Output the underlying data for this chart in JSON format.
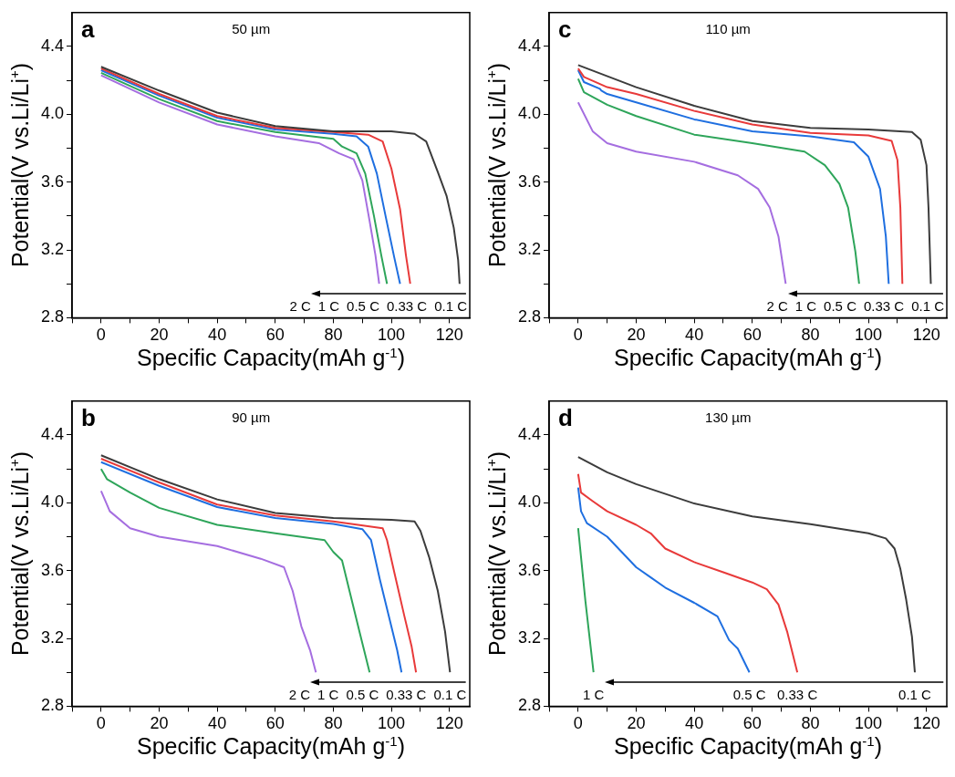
{
  "chart_data": [
    {
      "type": "line",
      "title": "50 µm",
      "xlabel": "Specific Capacity(mAh g$^{-1}$)",
      "ylabel": "Potential(V vs.Li/Li$^{+}$)",
      "xlim": [
        -10,
        127
      ],
      "ylim": [
        2.8,
        4.6
      ],
      "xticks": [
        {
          "value": -10,
          "label": null
        },
        0,
        {
          "value": 10,
          "label": null
        },
        20,
        {
          "value": 30,
          "label": null
        },
        40,
        {
          "value": 50,
          "label": null
        },
        60,
        {
          "value": 70,
          "label": null
        },
        80,
        {
          "value": 90,
          "label": null
        },
        100,
        {
          "value": 110,
          "label": null
        },
        120
      ],
      "yticks": [
        2.8,
        {
          "value": 3.0,
          "label": null
        },
        3.2,
        {
          "value": 3.4,
          "label": null
        },
        3.6,
        {
          "value": 3.8,
          "label": null
        },
        "4.0",
        {
          "value": 4.2,
          "label": null
        },
        4.4
      ],
      "marker": "none",
      "annotations": [
        "a",
        "2 C",
        "1 C",
        "0.5 C",
        "0.33 C",
        "0.1 C"
      ],
      "series": [
        {
          "color": "#3c3c3c",
          "x": [
            0,
            20,
            40,
            60,
            80,
            100,
            108,
            112,
            116,
            119,
            121.5,
            123,
            123.5
          ],
          "values": [
            4.28,
            4.14,
            4.01,
            3.93,
            3.9,
            3.9,
            3.885,
            3.84,
            3.66,
            3.52,
            3.33,
            3.14,
            3.0
          ]
        },
        {
          "color": "#e83a3a",
          "x": [
            0,
            20,
            40,
            60,
            80,
            92,
            97,
            100,
            103,
            105,
            106.5
          ],
          "values": [
            4.27,
            4.12,
            3.99,
            3.92,
            3.895,
            3.88,
            3.84,
            3.68,
            3.44,
            3.17,
            3.0
          ]
        },
        {
          "color": "#1f6fe0",
          "x": [
            0,
            20,
            40,
            60,
            80,
            88,
            92,
            95,
            98,
            101,
            103
          ],
          "values": [
            4.26,
            4.11,
            3.98,
            3.91,
            3.885,
            3.87,
            3.81,
            3.65,
            3.4,
            3.155,
            3.0
          ]
        },
        {
          "color": "#2ea55a",
          "x": [
            0,
            20,
            40,
            60,
            80,
            83,
            88,
            91,
            94,
            96.5,
            98.5
          ],
          "values": [
            4.245,
            4.09,
            3.96,
            3.895,
            3.855,
            3.81,
            3.77,
            3.65,
            3.4,
            3.17,
            3.0
          ]
        },
        {
          "color": "#a56ee0",
          "x": [
            0,
            20,
            40,
            60,
            75,
            82,
            87,
            90,
            92.5,
            94.5,
            95.8
          ],
          "values": [
            4.23,
            4.07,
            3.94,
            3.87,
            3.83,
            3.77,
            3.735,
            3.61,
            3.37,
            3.17,
            3.0
          ]
        }
      ]
    },
    {
      "type": "line",
      "title": "110 µm",
      "xlabel": "Specific Capacity(mAh g$^{-1}$)",
      "ylabel": "Potential(V vs.Li/Li$^{+}$)",
      "xlim": [
        -10,
        127
      ],
      "ylim": [
        2.8,
        4.6
      ],
      "xticks": [
        {
          "value": -10,
          "label": null
        },
        0,
        {
          "value": 10,
          "label": null
        },
        20,
        {
          "value": 30,
          "label": null
        },
        40,
        {
          "value": 50,
          "label": null
        },
        60,
        {
          "value": 70,
          "label": null
        },
        80,
        {
          "value": 90,
          "label": null
        },
        100,
        {
          "value": 110,
          "label": null
        },
        120
      ],
      "yticks": [
        2.8,
        {
          "value": 3.0,
          "label": null
        },
        3.2,
        {
          "value": 3.4,
          "label": null
        },
        3.6,
        {
          "value": 3.8,
          "label": null
        },
        "4.0",
        {
          "value": 4.2,
          "label": null
        },
        4.4
      ],
      "marker": "none",
      "annotations": [
        "c",
        "2 C",
        "1 C",
        "0.5 C",
        "0.33 C",
        "0.1 C"
      ],
      "series": [
        {
          "color": "#3c3c3c",
          "x": [
            0,
            20,
            40,
            60,
            80,
            100,
            115,
            118,
            120,
            120.7,
            121.5
          ],
          "values": [
            4.29,
            4.16,
            4.05,
            3.96,
            3.92,
            3.91,
            3.895,
            3.85,
            3.7,
            3.45,
            3.0
          ]
        },
        {
          "color": "#e83a3a",
          "x": [
            0,
            2,
            10,
            20,
            40,
            60,
            80,
            100,
            108,
            110,
            111,
            111.7
          ],
          "values": [
            4.27,
            4.22,
            4.16,
            4.12,
            4.02,
            3.94,
            3.89,
            3.875,
            3.843,
            3.73,
            3.45,
            3.0
          ]
        },
        {
          "color": "#1f6fe0",
          "x": [
            0,
            2,
            7.5,
            8,
            10,
            20,
            40,
            60,
            80,
            95,
            100,
            104,
            106,
            107
          ],
          "values": [
            4.26,
            4.19,
            4.15,
            4.14,
            4.12,
            4.07,
            3.97,
            3.9,
            3.87,
            3.835,
            3.75,
            3.56,
            3.28,
            3.0
          ]
        },
        {
          "color": "#2ea55a",
          "x": [
            0,
            2,
            10,
            20,
            40,
            60,
            78,
            85,
            90,
            93,
            95.5,
            96.8
          ],
          "values": [
            4.21,
            4.13,
            4.056,
            3.99,
            3.88,
            3.83,
            3.78,
            3.7,
            3.59,
            3.45,
            3.19,
            3.0
          ]
        },
        {
          "color": "#a56ee0",
          "x": [
            0,
            5,
            10,
            20,
            40,
            55,
            62,
            66,
            69,
            71.5
          ],
          "values": [
            4.07,
            3.9,
            3.83,
            3.78,
            3.72,
            3.64,
            3.56,
            3.45,
            3.28,
            3.0
          ]
        }
      ]
    },
    {
      "type": "line",
      "title": "90 µm",
      "xlabel": "Specific Capacity(mAh g$^{-1}$)",
      "ylabel": "Potential(V vs.Li/Li$^{+}$)",
      "xlim": [
        -10,
        127
      ],
      "ylim": [
        2.8,
        4.6
      ],
      "xticks": [
        {
          "value": -10,
          "label": null
        },
        0,
        {
          "value": 10,
          "label": null
        },
        20,
        {
          "value": 30,
          "label": null
        },
        40,
        {
          "value": 50,
          "label": null
        },
        60,
        {
          "value": 70,
          "label": null
        },
        80,
        {
          "value": 90,
          "label": null
        },
        100,
        {
          "value": 110,
          "label": null
        },
        120
      ],
      "yticks": [
        2.8,
        {
          "value": 3.0,
          "label": null
        },
        3.2,
        {
          "value": 3.4,
          "label": null
        },
        3.6,
        {
          "value": 3.8,
          "label": null
        },
        "4.0",
        {
          "value": 4.2,
          "label": null
        },
        4.4
      ],
      "marker": "none",
      "annotations": [
        "b",
        "2 C",
        "1 C",
        "0.5 C",
        "0.33 C",
        "0.1 C"
      ],
      "series": [
        {
          "color": "#3c3c3c",
          "x": [
            0,
            20,
            40,
            60,
            80,
            100,
            108,
            110,
            113,
            116,
            118.5,
            120.2
          ],
          "values": [
            4.28,
            4.14,
            4.02,
            3.94,
            3.91,
            3.9,
            3.89,
            3.835,
            3.68,
            3.48,
            3.24,
            3.0
          ]
        },
        {
          "color": "#e83a3a",
          "x": [
            0,
            20,
            40,
            60,
            80,
            97,
            98.5,
            101,
            104.5,
            107,
            108.5
          ],
          "values": [
            4.26,
            4.12,
            3.99,
            3.925,
            3.89,
            3.85,
            3.78,
            3.59,
            3.33,
            3.15,
            3.0
          ]
        },
        {
          "color": "#1f6fe0",
          "x": [
            0,
            20,
            40,
            60,
            80,
            90,
            93,
            96,
            99,
            102,
            103.5
          ],
          "values": [
            4.24,
            4.1,
            3.975,
            3.91,
            3.875,
            3.845,
            3.78,
            3.55,
            3.34,
            3.13,
            3.0
          ]
        },
        {
          "color": "#2ea55a",
          "x": [
            0,
            2,
            10,
            20,
            40,
            60,
            77,
            80,
            83,
            86,
            89,
            92.5
          ],
          "values": [
            4.2,
            4.14,
            4.06,
            3.97,
            3.87,
            3.82,
            3.78,
            3.71,
            3.66,
            3.45,
            3.24,
            3.0
          ]
        },
        {
          "color": "#a56ee0",
          "x": [
            0,
            3,
            10,
            20,
            40,
            55,
            63,
            66,
            69,
            72,
            74
          ],
          "values": [
            4.07,
            3.95,
            3.85,
            3.8,
            3.745,
            3.67,
            3.62,
            3.48,
            3.27,
            3.13,
            3.0
          ]
        }
      ]
    },
    {
      "type": "line",
      "title": "130 µm",
      "xlabel": "Specific Capacity(mAh g$^{-1}$)",
      "ylabel": "Potential(V vs.Li/Li$^{+}$)",
      "xlim": [
        -10,
        127
      ],
      "ylim": [
        2.8,
        4.6
      ],
      "xticks": [
        {
          "value": -10,
          "label": null
        },
        0,
        {
          "value": 10,
          "label": null
        },
        20,
        {
          "value": 30,
          "label": null
        },
        40,
        {
          "value": 50,
          "label": null
        },
        60,
        {
          "value": 70,
          "label": null
        },
        80,
        {
          "value": 90,
          "label": null
        },
        100,
        {
          "value": 110,
          "label": null
        },
        120
      ],
      "yticks": [
        2.8,
        {
          "value": 3.0,
          "label": null
        },
        3.2,
        {
          "value": 3.4,
          "label": null
        },
        3.6,
        {
          "value": 3.8,
          "label": null
        },
        "4.0",
        {
          "value": 4.2,
          "label": null
        },
        4.4
      ],
      "marker": "none",
      "annotations": [
        "d",
        "1 C",
        "0.5 C",
        "0.33 C",
        "0.1 C"
      ],
      "series": [
        {
          "color": "#3c3c3c",
          "x": [
            0,
            10,
            20,
            40,
            60,
            80,
            100,
            106,
            109,
            111,
            113,
            115,
            116
          ],
          "values": [
            4.27,
            4.18,
            4.11,
            3.996,
            3.92,
            3.874,
            3.82,
            3.79,
            3.73,
            3.61,
            3.43,
            3.21,
            3.0
          ]
        },
        {
          "color": "#e83a3a",
          "x": [
            0,
            1,
            5,
            10,
            20,
            25,
            30,
            40,
            50,
            60,
            65,
            69,
            72,
            75.5
          ],
          "values": [
            4.17,
            4.06,
            4.01,
            3.95,
            3.87,
            3.82,
            3.73,
            3.65,
            3.59,
            3.53,
            3.49,
            3.4,
            3.24,
            3.0
          ]
        },
        {
          "color": "#1f6fe0",
          "x": [
            0,
            1,
            3,
            10,
            15,
            20,
            25,
            30,
            40,
            48,
            52,
            55,
            59
          ],
          "values": [
            4.09,
            3.95,
            3.88,
            3.8,
            3.71,
            3.62,
            3.56,
            3.5,
            3.41,
            3.33,
            3.19,
            3.14,
            3.0
          ]
        },
        {
          "color": "#2ea55a",
          "x": [
            0,
            2.5,
            5.3
          ],
          "values": [
            3.85,
            3.42,
            3.0
          ]
        }
      ]
    }
  ]
}
